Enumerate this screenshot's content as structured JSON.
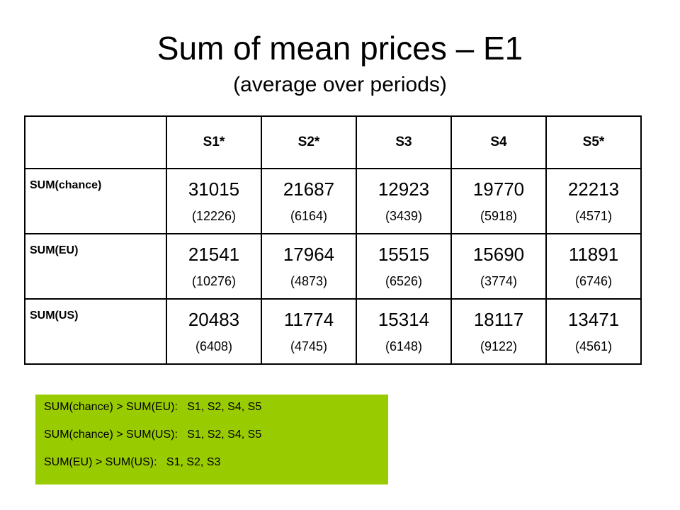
{
  "title": "Sum of mean prices – E1",
  "subtitle": "(average over periods)",
  "table": {
    "corner": "",
    "columns": [
      "S1*",
      "S2*",
      "S3",
      "S4",
      "S5*"
    ],
    "rows": [
      {
        "label": "SUM(chance)",
        "cells": [
          {
            "mean": "31015",
            "sd": "(12226)"
          },
          {
            "mean": "21687",
            "sd": "(6164)"
          },
          {
            "mean": "12923",
            "sd": "(3439)"
          },
          {
            "mean": "19770",
            "sd": "(5918)"
          },
          {
            "mean": "22213",
            "sd": "(4571)"
          }
        ]
      },
      {
        "label": "SUM(EU)",
        "cells": [
          {
            "mean": "21541",
            "sd": "(10276)"
          },
          {
            "mean": "17964",
            "sd": "(4873)"
          },
          {
            "mean": "15515",
            "sd": "(6526)"
          },
          {
            "mean": "15690",
            "sd": "(3774)"
          },
          {
            "mean": "11891",
            "sd": "(6746)"
          }
        ]
      },
      {
        "label": "SUM(US)",
        "cells": [
          {
            "mean": "20483",
            "sd": "(6408)"
          },
          {
            "mean": "11774",
            "sd": "(4745)"
          },
          {
            "mean": "15314",
            "sd": "(6148)"
          },
          {
            "mean": "18117",
            "sd": "(9122)"
          },
          {
            "mean": "13471",
            "sd": "(4561)"
          }
        ]
      }
    ]
  },
  "notes": {
    "background_color": "#99cc00",
    "lines": [
      "SUM(chance) > SUM(EU):   S1, S2, S4, S5",
      "SUM(chance) > SUM(US):   S1, S2, S4, S5",
      "SUM(EU) > SUM(US):   S1, S2, S3"
    ]
  }
}
